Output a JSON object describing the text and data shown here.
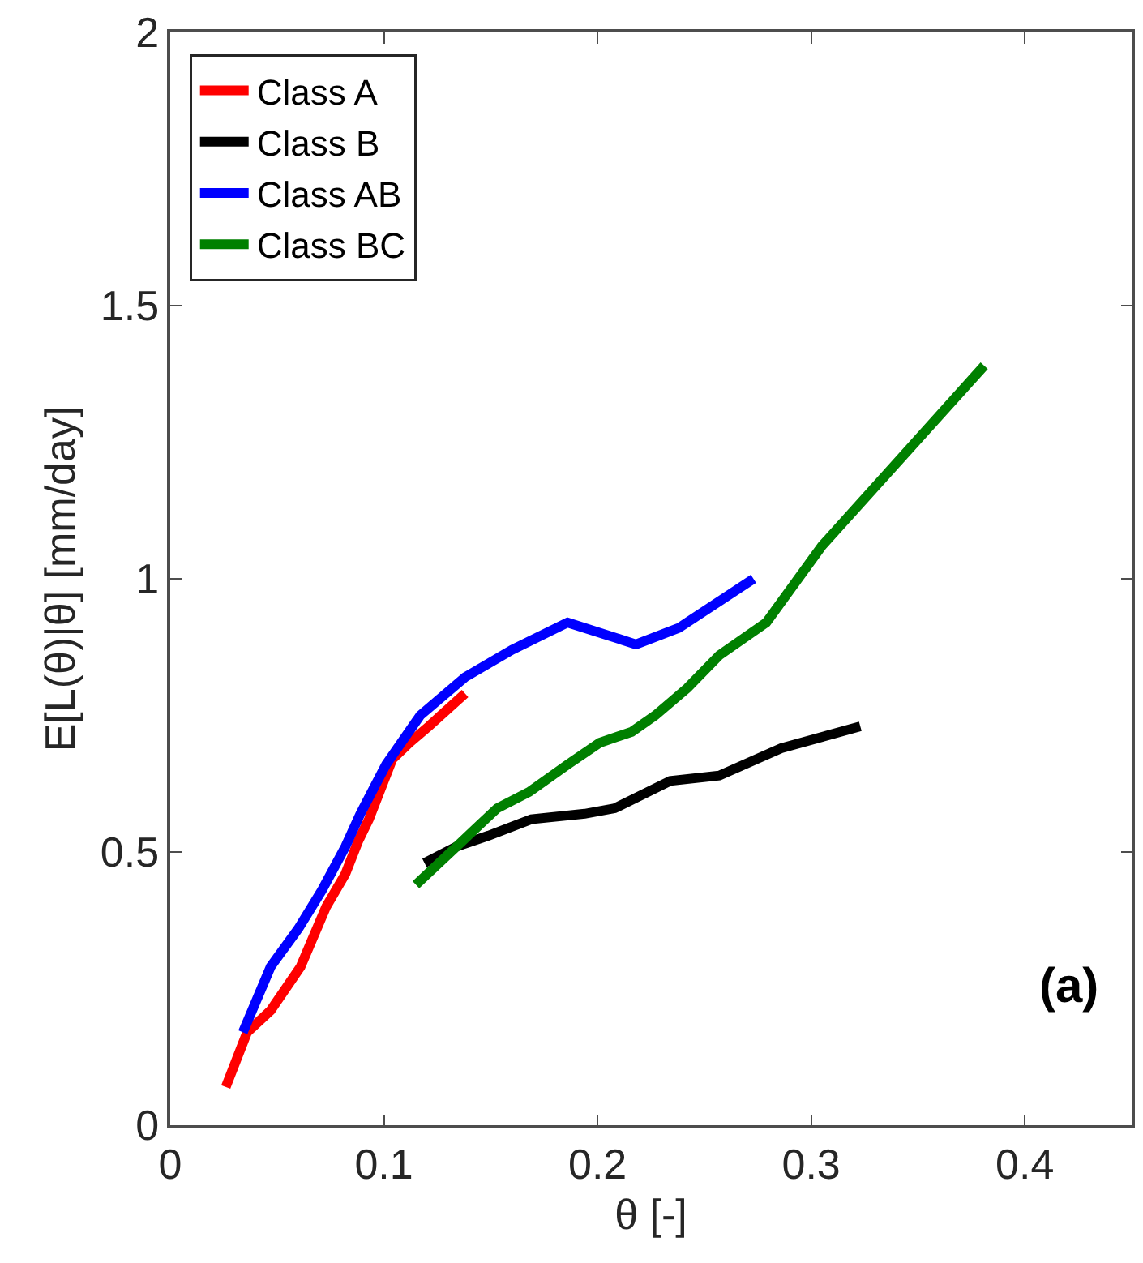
{
  "chart_data": {
    "type": "line",
    "xlabel": "θ [-]",
    "ylabel": "E[L(θ)|θ] [mm/day]",
    "xlim": [
      0,
      0.45
    ],
    "xticks": [
      0,
      0.1,
      0.2,
      0.3,
      0.4
    ],
    "ylim": [
      0,
      2
    ],
    "yticks": [
      0,
      0.5,
      1,
      1.5,
      2
    ],
    "legend": "top left",
    "line_style": "solid",
    "marker": "none",
    "annotations": [
      "(a)"
    ],
    "series": [
      {
        "name": "Class A",
        "color": "#ff0000",
        "x": [
          0.026,
          0.036,
          0.047,
          0.061,
          0.073,
          0.082,
          0.088,
          0.093,
          0.104,
          0.112,
          0.121,
          0.138
        ],
        "values": [
          0.07,
          0.17,
          0.21,
          0.29,
          0.4,
          0.46,
          0.52,
          0.56,
          0.67,
          0.7,
          0.73,
          0.79
        ]
      },
      {
        "name": "Class B",
        "color": "#000000",
        "x": [
          0.119,
          0.134,
          0.149,
          0.169,
          0.194,
          0.208,
          0.234,
          0.257,
          0.286,
          0.323
        ],
        "values": [
          0.48,
          0.51,
          0.53,
          0.56,
          0.57,
          0.58,
          0.63,
          0.64,
          0.69,
          0.73
        ]
      },
      {
        "name": "Class AB",
        "color": "#0000ff",
        "x": [
          0.034,
          0.047,
          0.06,
          0.071,
          0.082,
          0.089,
          0.101,
          0.117,
          0.138,
          0.16,
          0.186,
          0.218,
          0.238,
          0.273
        ],
        "values": [
          0.17,
          0.29,
          0.36,
          0.43,
          0.51,
          0.57,
          0.66,
          0.75,
          0.82,
          0.87,
          0.92,
          0.88,
          0.91,
          1.0
        ]
      },
      {
        "name": "Class BC",
        "color": "#008000",
        "x": [
          0.115,
          0.134,
          0.153,
          0.168,
          0.186,
          0.201,
          0.216,
          0.227,
          0.242,
          0.257,
          0.279,
          0.305,
          0.381
        ],
        "values": [
          0.44,
          0.51,
          0.58,
          0.61,
          0.66,
          0.7,
          0.72,
          0.75,
          0.8,
          0.86,
          0.92,
          1.06,
          1.39
        ]
      }
    ]
  }
}
